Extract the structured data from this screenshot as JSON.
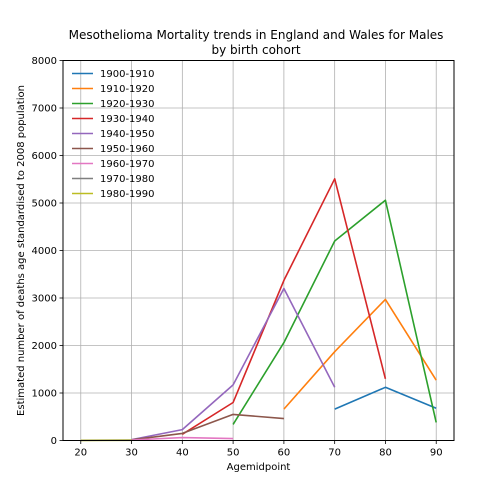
{
  "chart_data": {
    "type": "line",
    "title": [
      "Mesothelioma Mortality trends in England and Wales for Males",
      "by birth cohort"
    ],
    "xlabel": "Agemidpoint",
    "ylabel": "Estimated number of deaths age standardised to 2008 population",
    "xlim": [
      16.5,
      93.5
    ],
    "ylim": [
      0,
      8000
    ],
    "xticks": [
      20,
      30,
      40,
      50,
      60,
      70,
      80,
      90
    ],
    "yticks": [
      0,
      1000,
      2000,
      3000,
      4000,
      5000,
      6000,
      7000,
      8000
    ],
    "grid": true,
    "legend_position": "top-left",
    "series": [
      {
        "name": "1900-1910",
        "color": "#1f77b4",
        "x": [
          70,
          80,
          90
        ],
        "y": [
          660,
          1120,
          680
        ]
      },
      {
        "name": "1910-1920",
        "color": "#ff7f0e",
        "x": [
          60,
          70,
          80,
          90
        ],
        "y": [
          660,
          1870,
          2970,
          1270
        ]
      },
      {
        "name": "1920-1930",
        "color": "#2ca02c",
        "x": [
          50,
          60,
          70,
          80,
          90
        ],
        "y": [
          340,
          2060,
          4200,
          5060,
          380
        ]
      },
      {
        "name": "1930-1940",
        "color": "#d62728",
        "x": [
          40,
          50,
          60,
          70,
          80
        ],
        "y": [
          130,
          800,
          3370,
          5510,
          1300
        ]
      },
      {
        "name": "1940-1950",
        "color": "#9467bd",
        "x": [
          30,
          40,
          50,
          60,
          70
        ],
        "y": [
          20,
          230,
          1170,
          3200,
          1120
        ]
      },
      {
        "name": "1950-1960",
        "color": "#8c564b",
        "x": [
          30,
          40,
          50,
          60
        ],
        "y": [
          15,
          150,
          550,
          460
        ]
      },
      {
        "name": "1960-1970",
        "color": "#e377c2",
        "x": [
          30,
          40,
          50
        ],
        "y": [
          10,
          60,
          40
        ]
      },
      {
        "name": "1970-1980",
        "color": "#7f7f7f",
        "x": [
          20,
          30
        ],
        "y": [
          5,
          10
        ]
      },
      {
        "name": "1980-1990",
        "color": "#bcbd22",
        "x": [
          20,
          30
        ],
        "y": [
          3,
          5
        ]
      }
    ]
  }
}
